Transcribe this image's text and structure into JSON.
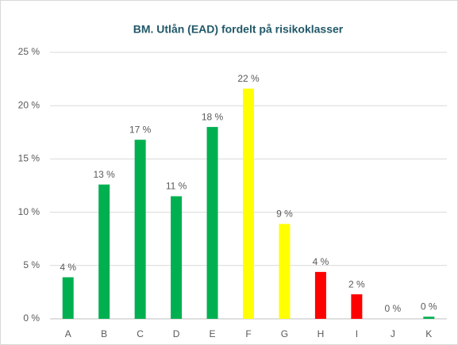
{
  "chart_data": {
    "type": "bar",
    "title": "BM. Utlån (EAD) fordelt på risikoklasser",
    "categories": [
      "A",
      "B",
      "C",
      "D",
      "E",
      "F",
      "G",
      "H",
      "I",
      "J",
      "K"
    ],
    "values": [
      3.9,
      12.6,
      16.8,
      11.5,
      18.0,
      21.6,
      8.9,
      4.4,
      2.3,
      0,
      0.2
    ],
    "value_labels": [
      "4 %",
      "13 %",
      "17 %",
      "11 %",
      "18 %",
      "22 %",
      "9 %",
      "4 %",
      "2 %",
      "0 %",
      "0 %"
    ],
    "colors": [
      "#00b050",
      "#00b050",
      "#00b050",
      "#00b050",
      "#00b050",
      "#ffff00",
      "#ffff00",
      "#ff0000",
      "#ff0000",
      "#00b050",
      "#00b050"
    ],
    "ylim": [
      0,
      25
    ],
    "yticks": [
      {
        "value": 0,
        "label": "0 %"
      },
      {
        "value": 5,
        "label": "5 %"
      },
      {
        "value": 10,
        "label": "10 %"
      },
      {
        "value": 15,
        "label": "15 %"
      },
      {
        "value": 20,
        "label": "20 %"
      },
      {
        "value": 25,
        "label": "25 %"
      }
    ],
    "grid": true
  }
}
